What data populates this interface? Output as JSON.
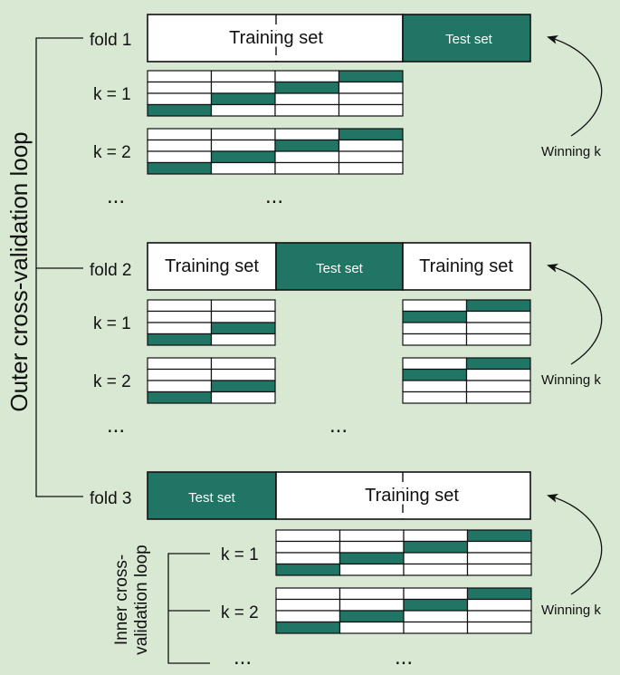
{
  "colors": {
    "background": "#d9e8d3",
    "box_fill": "#ffffff",
    "test_fill": "#217565",
    "stroke": "#111111",
    "text": "#111111",
    "test_text": "#ffffff"
  },
  "outer_loop_label": "Outer cross-validation loop",
  "inner_loop_label_line1": "Inner cross-",
  "inner_loop_label_line2": "validation loop",
  "winning_label": "Winning k",
  "ellipsis": "...",
  "folds": [
    {
      "label": "fold 1",
      "segments": [
        {
          "label": "Training set",
          "kind": "train"
        },
        {
          "label": "Test set",
          "kind": "test"
        }
      ],
      "k_rows": [
        "k = 1",
        "k = 2"
      ]
    },
    {
      "label": "fold 2",
      "segments": [
        {
          "label": "Training set",
          "kind": "train"
        },
        {
          "label": "Test set",
          "kind": "test"
        },
        {
          "label": "Training set",
          "kind": "train"
        }
      ],
      "k_rows": [
        "k = 1",
        "k = 2"
      ]
    },
    {
      "label": "fold 3",
      "segments": [
        {
          "label": "Test set",
          "kind": "test"
        },
        {
          "label": "Training set",
          "kind": "train"
        }
      ],
      "k_rows": [
        "k = 1",
        "k = 2"
      ]
    }
  ]
}
